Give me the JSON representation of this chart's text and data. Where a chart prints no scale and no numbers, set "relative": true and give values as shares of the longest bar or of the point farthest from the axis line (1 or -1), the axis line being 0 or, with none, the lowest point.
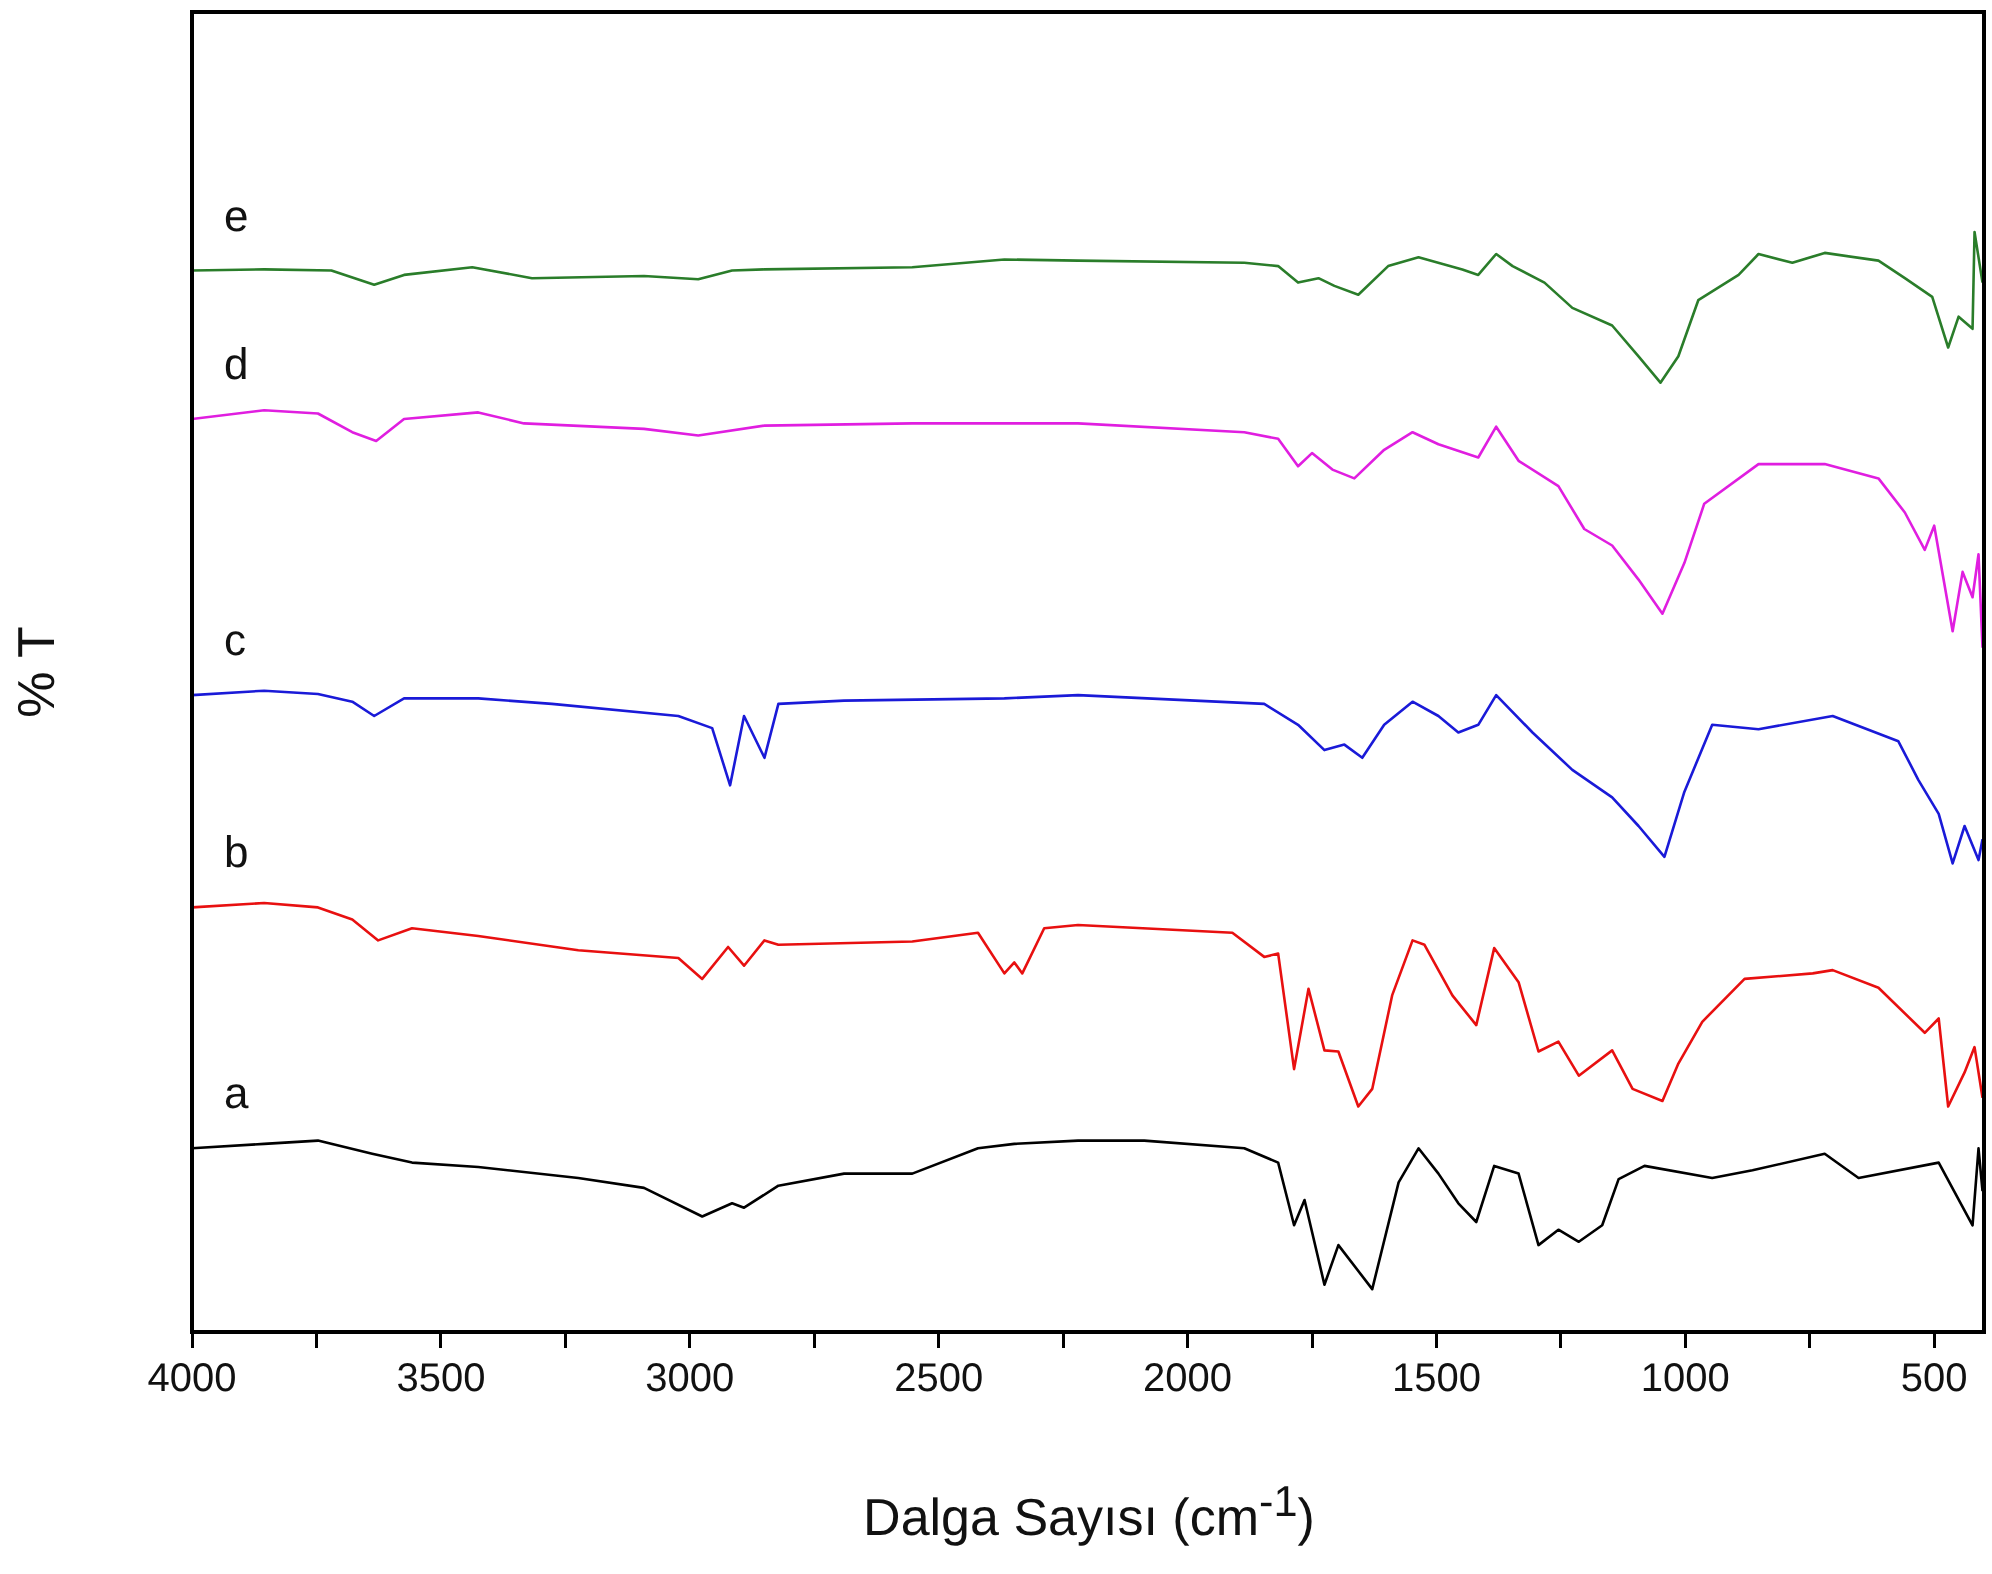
{
  "chart_data": {
    "type": "line",
    "relative": true,
    "xlabel": "Dalga Sayısı (cm$^{-1}$)",
    "ylabel": "% T",
    "xlim": [
      4000,
      400
    ],
    "xticks": [
      4000,
      {
        "value": 3750,
        "label": null
      },
      3500,
      {
        "value": 3250,
        "label": null
      },
      3000,
      {
        "value": 2750,
        "label": null
      },
      2500,
      {
        "value": 2250,
        "label": null
      },
      2000,
      {
        "value": 1750,
        "label": null
      },
      1500,
      {
        "value": 1250,
        "label": null
      },
      1000,
      {
        "value": 750,
        "label": null
      },
      500
    ],
    "tick_labels": "x",
    "legend": false,
    "marker": "none",
    "line_style": "solid",
    "series": [
      {
        "name": "a",
        "color": "#000000",
        "x": [
          4000,
          3855,
          3747,
          3638,
          3558,
          3425,
          3224,
          3092,
          2975,
          2915,
          2891,
          2822,
          2690,
          2553,
          2421,
          2348,
          2220,
          2087,
          1886,
          1818,
          1786,
          1765,
          1725,
          1697,
          1629,
          1576,
          1536,
          1496,
          1456,
          1420,
          1384,
          1335,
          1295,
          1255,
          1214,
          1167,
          1134,
          1082,
          946,
          865,
          720,
          652,
          491,
          423,
          411,
          403
        ],
        "values": [
          0.167,
          0.171,
          0.174,
          0.162,
          0.154,
          0.15,
          0.14,
          0.131,
          0.105,
          0.117,
          0.113,
          0.133,
          0.144,
          0.144,
          0.167,
          0.171,
          0.174,
          0.174,
          0.167,
          0.154,
          0.097,
          0.12,
          0.043,
          0.079,
          0.039,
          0.136,
          0.167,
          0.144,
          0.117,
          0.1,
          0.151,
          0.144,
          0.079,
          0.093,
          0.082,
          0.097,
          0.139,
          0.151,
          0.14,
          0.147,
          0.162,
          0.14,
          0.154,
          0.097,
          0.167,
          0.128
        ]
      },
      {
        "name": "b",
        "color": "#e81010",
        "x": [
          4000,
          3855,
          3747,
          3678,
          3626,
          3558,
          3425,
          3224,
          3023,
          2975,
          2923,
          2891,
          2850,
          2822,
          2553,
          2421,
          2368,
          2348,
          2332,
          2288,
          2220,
          1910,
          1846,
          1818,
          1786,
          1757,
          1725,
          1697,
          1657,
          1629,
          1589,
          1548,
          1524,
          1468,
          1420,
          1384,
          1335,
          1295,
          1255,
          1214,
          1147,
          1106,
          1046,
          1014,
          966,
          881,
          744,
          704,
          612,
          519,
          491,
          472,
          439,
          419,
          403
        ],
        "values": [
          0.386,
          0.39,
          0.386,
          0.375,
          0.356,
          0.367,
          0.36,
          0.347,
          0.34,
          0.321,
          0.35,
          0.333,
          0.356,
          0.352,
          0.355,
          0.363,
          0.326,
          0.336,
          0.326,
          0.367,
          0.37,
          0.363,
          0.341,
          0.344,
          0.239,
          0.312,
          0.256,
          0.255,
          0.205,
          0.221,
          0.306,
          0.356,
          0.352,
          0.306,
          0.279,
          0.349,
          0.318,
          0.255,
          0.264,
          0.233,
          0.256,
          0.221,
          0.21,
          0.244,
          0.282,
          0.321,
          0.326,
          0.329,
          0.313,
          0.272,
          0.285,
          0.205,
          0.236,
          0.259,
          0.213
        ]
      },
      {
        "name": "c",
        "color": "#1a1ad8",
        "x": [
          4000,
          3855,
          3747,
          3678,
          3634,
          3574,
          3425,
          3277,
          3023,
          2955,
          2919,
          2891,
          2850,
          2822,
          2690,
          2368,
          2220,
          1846,
          1778,
          1725,
          1685,
          1649,
          1605,
          1548,
          1496,
          1456,
          1416,
          1380,
          1307,
          1227,
          1147,
          1094,
          1042,
          1002,
          946,
          853,
          704,
          572,
          532,
          491,
          463,
          439,
          411,
          403
        ],
        "values": [
          0.579,
          0.583,
          0.58,
          0.573,
          0.56,
          0.576,
          0.576,
          0.571,
          0.56,
          0.549,
          0.497,
          0.56,
          0.522,
          0.571,
          0.574,
          0.576,
          0.579,
          0.571,
          0.552,
          0.529,
          0.534,
          0.522,
          0.552,
          0.573,
          0.56,
          0.545,
          0.552,
          0.579,
          0.545,
          0.511,
          0.486,
          0.46,
          0.432,
          0.491,
          0.552,
          0.548,
          0.56,
          0.537,
          0.502,
          0.471,
          0.426,
          0.46,
          0.429,
          0.448
        ]
      },
      {
        "name": "d",
        "color": "#e01ee0",
        "x": [
          4000,
          3855,
          3747,
          3678,
          3630,
          3574,
          3425,
          3333,
          3092,
          2983,
          2850,
          2553,
          2352,
          2220,
          1886,
          1818,
          1778,
          1750,
          1709,
          1665,
          1605,
          1548,
          1496,
          1416,
          1380,
          1335,
          1255,
          1203,
          1147,
          1094,
          1046,
          1002,
          962,
          853,
          720,
          612,
          559,
          519,
          500,
          463,
          443,
          423,
          411,
          403
        ],
        "values": [
          0.83,
          0.838,
          0.835,
          0.818,
          0.81,
          0.83,
          0.836,
          0.826,
          0.821,
          0.815,
          0.824,
          0.826,
          0.826,
          0.826,
          0.818,
          0.812,
          0.787,
          0.799,
          0.784,
          0.776,
          0.802,
          0.818,
          0.807,
          0.795,
          0.823,
          0.792,
          0.769,
          0.73,
          0.715,
          0.684,
          0.653,
          0.699,
          0.753,
          0.789,
          0.789,
          0.776,
          0.745,
          0.711,
          0.733,
          0.637,
          0.691,
          0.668,
          0.707,
          0.622
        ]
      },
      {
        "name": "e",
        "color": "#2a7d2a",
        "x": [
          4000,
          3855,
          3720,
          3634,
          3574,
          3437,
          3317,
          3092,
          2983,
          2915,
          2850,
          2553,
          2368,
          2220,
          1886,
          1818,
          1778,
          1737,
          1705,
          1657,
          1597,
          1536,
          1448,
          1416,
          1380,
          1347,
          1283,
          1227,
          1147,
          1094,
          1050,
          1014,
          974,
          893,
          853,
          785,
          720,
          612,
          559,
          504,
          472,
          451,
          423,
          419,
          403
        ],
        "values": [
          0.965,
          0.966,
          0.965,
          0.952,
          0.961,
          0.968,
          0.958,
          0.96,
          0.957,
          0.965,
          0.966,
          0.968,
          0.975,
          0.974,
          0.972,
          0.969,
          0.954,
          0.958,
          0.951,
          0.943,
          0.969,
          0.977,
          0.966,
          0.961,
          0.98,
          0.969,
          0.954,
          0.931,
          0.915,
          0.887,
          0.863,
          0.887,
          0.938,
          0.961,
          0.98,
          0.972,
          0.981,
          0.974,
          0.958,
          0.941,
          0.895,
          0.923,
          0.912,
          1,
          0.954
        ]
      }
    ]
  }
}
